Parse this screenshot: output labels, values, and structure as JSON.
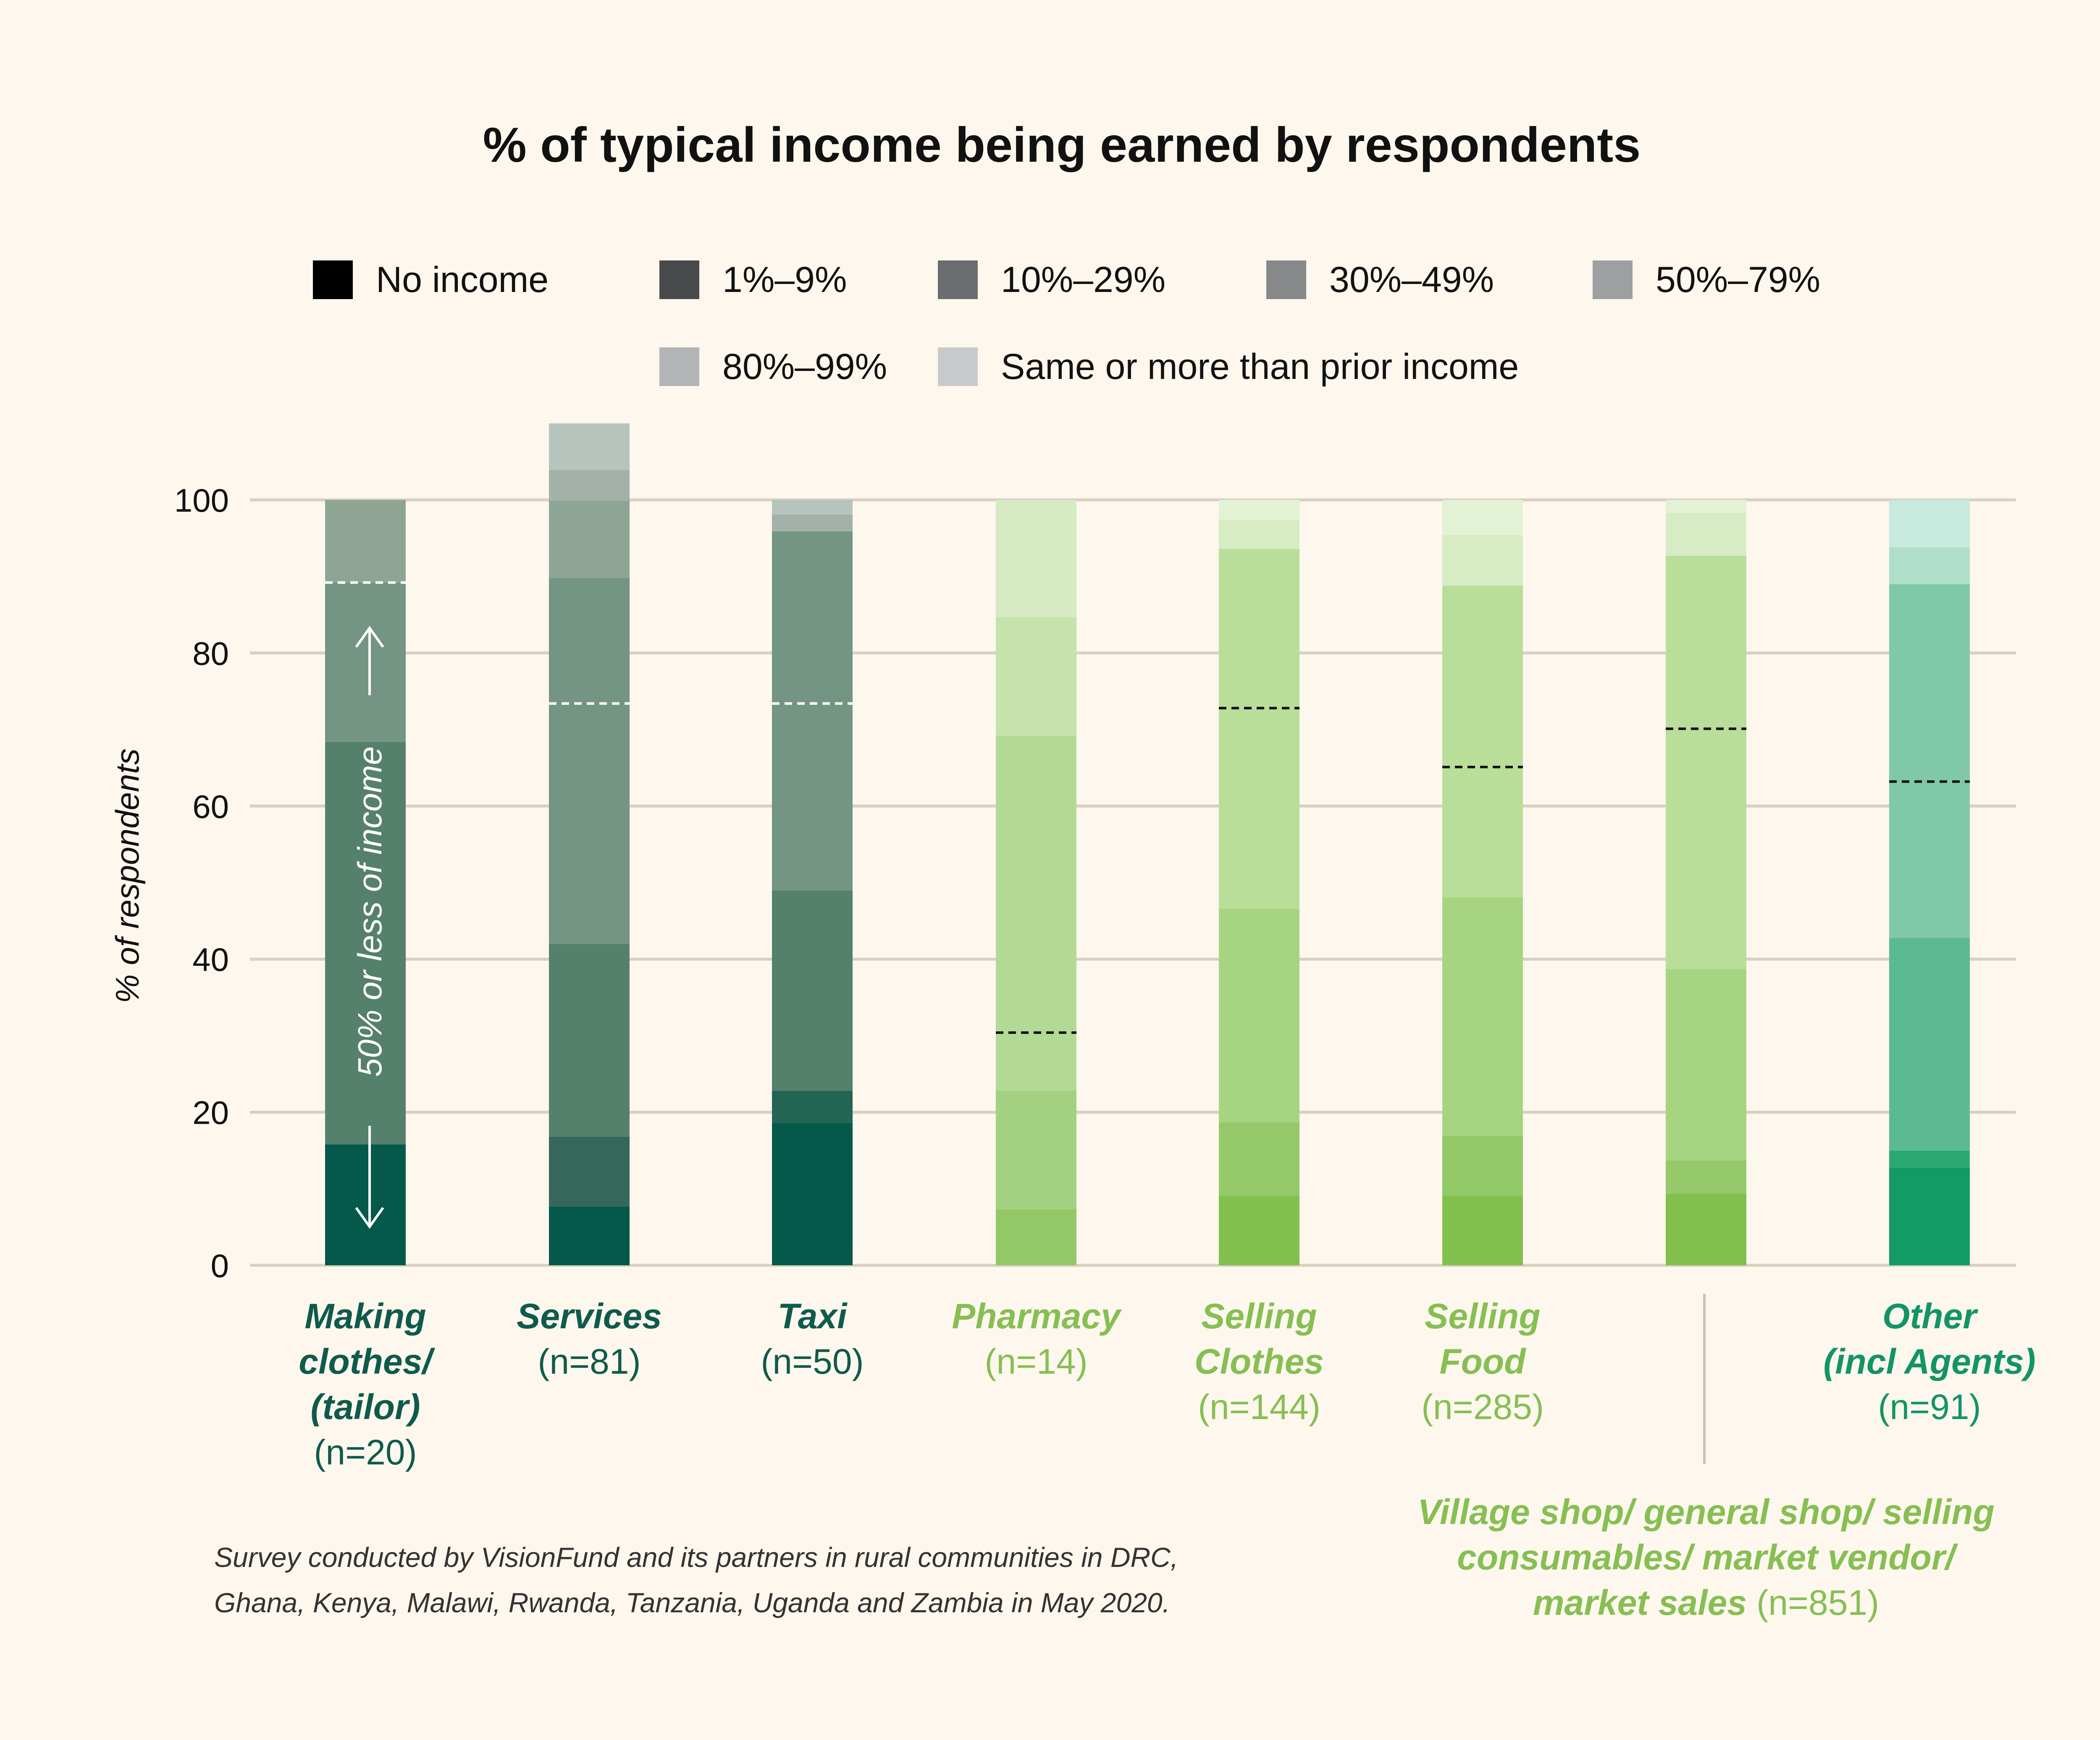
{
  "chart_data": {
    "type": "bar",
    "stacked": true,
    "title": "% of typical income being earned by respondents",
    "ylabel": "% of respondents",
    "ylim": [
      0,
      100
    ],
    "yticks": [
      0,
      20,
      40,
      60,
      80,
      100
    ],
    "legend_labels": [
      "No income",
      "1%–9%",
      "10%–29%",
      "30%–49%",
      "50%–79%",
      "80%–99%",
      "Same or more than prior income"
    ],
    "legend_colors": [
      "#000000",
      "#48494b",
      "#6b6c6f",
      "#87888a",
      "#9e9fa1",
      "#b3b4b6",
      "#c8c9cb"
    ],
    "categories": [
      {
        "name": "Making clothes/ (tailor)",
        "label_lines": [
          "Making",
          "clothes/",
          "(tailor)"
        ],
        "n_label": "(n=20)",
        "colors": [
          "#04594a",
          "#1f6451",
          "#55806c",
          "#749484",
          "#8ea596",
          "#a9bab0",
          "#bdcbc3"
        ],
        "values": [
          15.8,
          0,
          52.6,
          20.8,
          10.8,
          0,
          0
        ],
        "threshold": 89.2,
        "threshold_style": "white"
      },
      {
        "name": "Services",
        "label_lines": [
          "Services"
        ],
        "n_label": "(n=81)",
        "colors": [
          "#04594a",
          "#35685a",
          "#55806c",
          "#749484",
          "#8ea596",
          "#a3b1a8",
          "#b7c4be"
        ],
        "values": [
          7.7,
          9.1,
          25.2,
          47.8,
          10.1,
          4.0,
          6.1
        ],
        "threshold": 73.4,
        "threshold_style": "white"
      },
      {
        "name": "Taxi",
        "label_lines": [
          "Taxi"
        ],
        "n_label": "(n=50)",
        "colors": [
          "#04594a",
          "#236553",
          "#55806c",
          "#749484",
          "#8ea596",
          "#a3b1a8",
          "#b7c4be"
        ],
        "values": [
          18.6,
          4.2,
          26.2,
          46.9,
          0,
          2.2,
          1.9
        ],
        "threshold": 73.4,
        "threshold_style": "white"
      },
      {
        "name": "Pharmacy",
        "label_lines": [
          "Pharmacy"
        ],
        "n_label": "(n=14)",
        "colors": [
          "#94c866",
          "#a4d181",
          "#b3da95",
          "#c5e3ab",
          "#d6eac4",
          "#e1f0d2",
          "#e6f3dc"
        ],
        "values": [
          7.3,
          15.5,
          46.4,
          15.5,
          15.3,
          0,
          0
        ],
        "threshold": 30.4,
        "threshold_style": "black"
      },
      {
        "name": "Selling Clothes",
        "label_lines": [
          "Selling",
          "Clothes"
        ],
        "n_label": "(n=144)",
        "colors": [
          "#82c04e",
          "#95c96a",
          "#a7d481",
          "#b9de9a",
          "#c7e4ae",
          "#d7ecc4",
          "#e3f2d5"
        ],
        "values": [
          9.1,
          9.6,
          27.9,
          47.0,
          0,
          3.8,
          2.6
        ],
        "threshold": 72.8,
        "threshold_style": "black"
      },
      {
        "name": "Selling Food",
        "label_lines": [
          "Selling",
          "Food"
        ],
        "n_label": "(n=285)",
        "colors": [
          "#82c04e",
          "#93c866",
          "#a7d481",
          "#b9de9a",
          "#c7e4ae",
          "#d7ecc4",
          "#e3f2d5"
        ],
        "values": [
          9.1,
          7.8,
          31.2,
          40.7,
          0,
          6.6,
          4.6
        ],
        "threshold": 65.1,
        "threshold_style": "black"
      },
      {
        "name": "Village shop",
        "label_lines": [],
        "n_label": "",
        "colors": [
          "#82c04e",
          "#95c96a",
          "#a7d481",
          "#b9de9a",
          "#c7e4ae",
          "#d7ecc4",
          "#e3f2d5"
        ],
        "values": [
          9.4,
          4.3,
          25.0,
          54.0,
          0,
          5.6,
          1.7
        ],
        "threshold": 70.1,
        "threshold_style": "black"
      },
      {
        "name": "Other (incl Agents)",
        "label_lines": [
          "Other",
          "(incl Agents)"
        ],
        "n_label": "(n=91)",
        "colors": [
          "#139a65",
          "#2aa874",
          "#5cba92",
          "#80c9a8",
          "#98d3b8",
          "#afdfca",
          "#c8e9dd"
        ],
        "values": [
          12.8,
          2.2,
          27.8,
          46.2,
          0,
          4.8,
          6.2
        ],
        "threshold": 63.2,
        "threshold_style": "black"
      }
    ],
    "category_label_colors": [
      "#0e5b4b",
      "#0e5b4b",
      "#0e5b4b",
      "#86bf52",
      "#86bf52",
      "#86bf52",
      "#86bf52",
      "#129467"
    ],
    "annotation": "50% or less of income",
    "group_label_lines": [
      "Village shop/ general shop/ selling",
      "consumables/ market vendor/"
    ],
    "group_label_last_line": "market sales",
    "group_label_n": "(n=851)",
    "note_lines": [
      "Survey conducted by VisionFund and its partners in rural communities in DRC,",
      "Ghana, Kenya, Malawi, Rwanda, Tanzania, Uganda and Zambia in May 2020."
    ],
    "grid": true,
    "legend_position": "top"
  }
}
